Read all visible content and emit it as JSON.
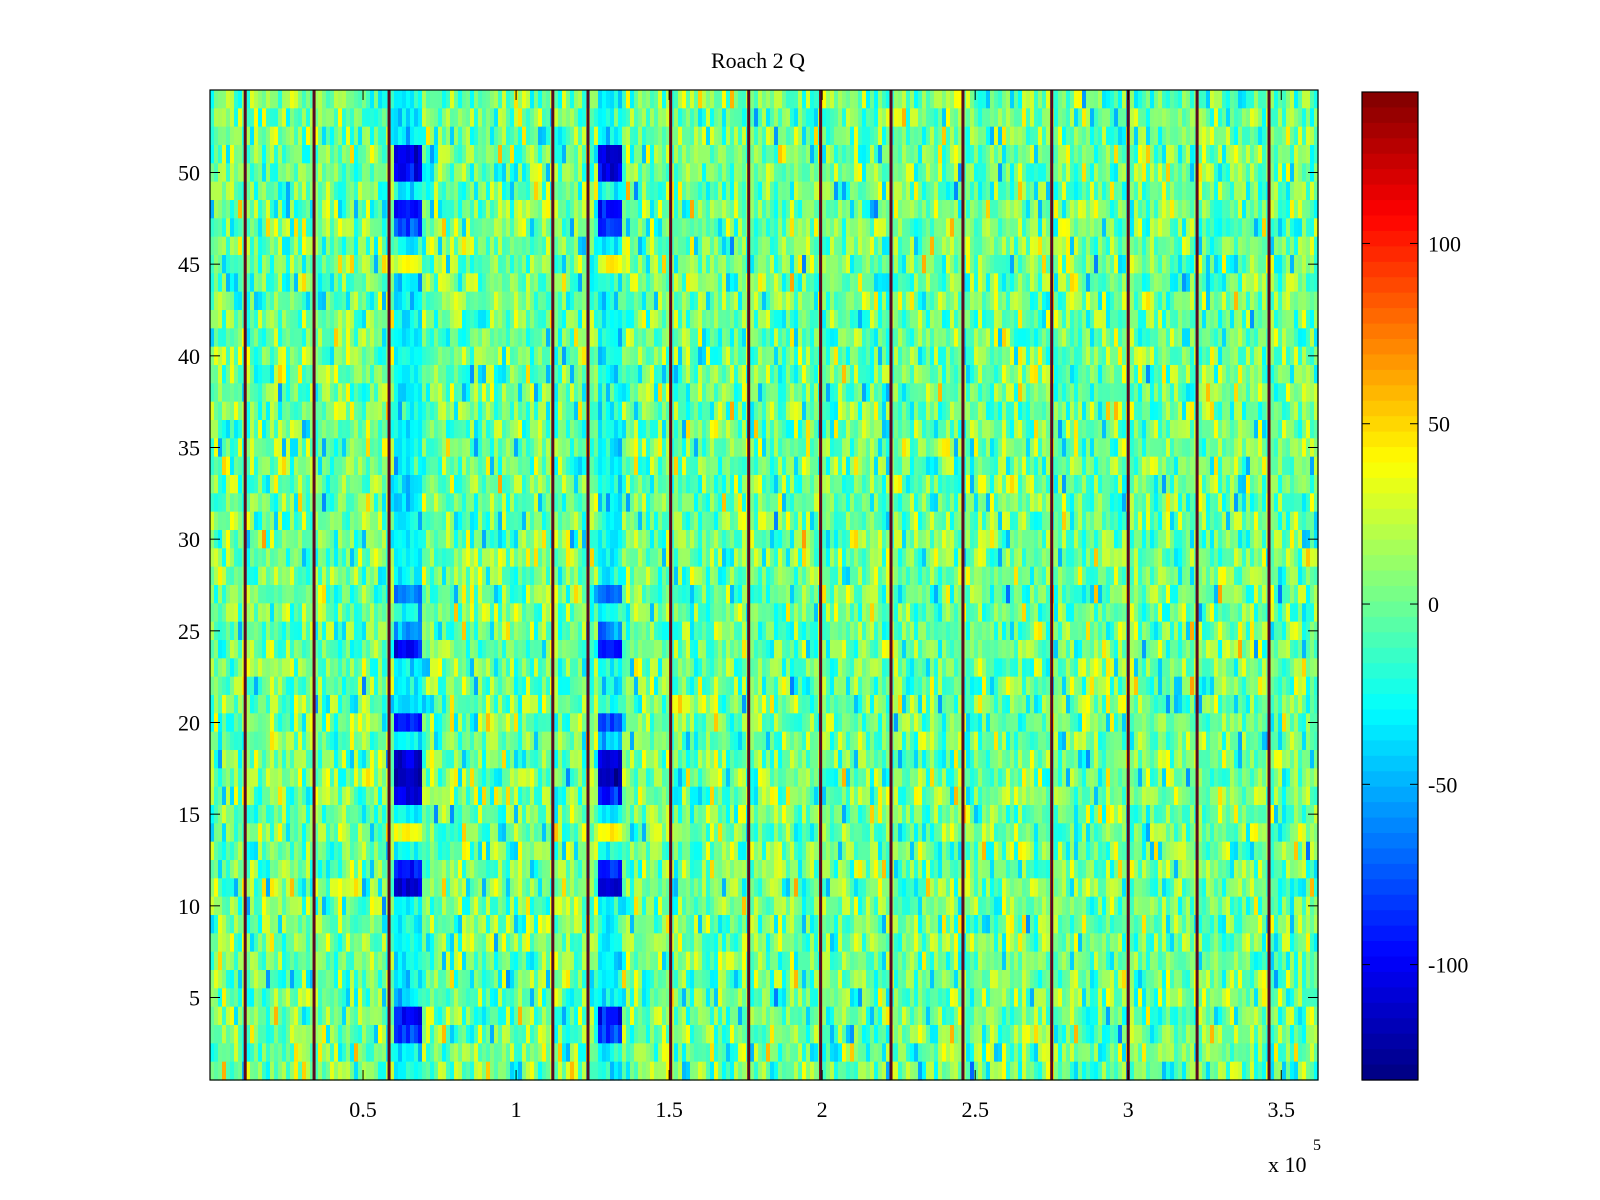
{
  "chart_data": {
    "type": "heatmap",
    "title": "Roach 2 Q",
    "xlabel": "",
    "ylabel": "",
    "x_multiplier": "x 10",
    "x_multiplier_exponent": "5",
    "xlim": [
      0,
      3.62
    ],
    "ylim": [
      0.5,
      54.5
    ],
    "x_ticks": [
      0.5,
      1,
      1.5,
      2,
      2.5,
      3,
      3.5
    ],
    "x_tick_labels": [
      "0.5",
      "1",
      "1.5",
      "2",
      "2.5",
      "3",
      "3.5"
    ],
    "y_ticks": [
      5,
      10,
      15,
      20,
      25,
      30,
      35,
      40,
      45,
      50
    ],
    "y_tick_labels": [
      "5",
      "10",
      "15",
      "20",
      "25",
      "30",
      "35",
      "40",
      "45",
      "50"
    ],
    "rows": 54,
    "colormap": "jet",
    "clim": [
      -132,
      142
    ],
    "colorbar_ticks": [
      -100,
      -50,
      0,
      50,
      100
    ],
    "colorbar_tick_labels": [
      "-100",
      "-50",
      "0",
      "50",
      "100"
    ],
    "background_mean": 0,
    "background_spread": 22,
    "spike_lines_x": [
      0.115,
      0.34,
      0.585,
      1.12,
      1.235,
      1.505,
      1.76,
      1.995,
      2.225,
      2.46,
      2.75,
      3.0,
      3.225,
      3.46
    ],
    "spike_value": 142,
    "anomaly_bands": [
      {
        "x_start": 0.6,
        "x_end": 0.69,
        "rows": [
          {
            "y": 51,
            "value": -105
          },
          {
            "y": 50,
            "value": -100
          },
          {
            "y": 48,
            "value": -95
          },
          {
            "y": 47,
            "value": -80
          },
          {
            "y": 45,
            "value": 30
          },
          {
            "y": 27,
            "value": -65
          },
          {
            "y": 25,
            "value": -60
          },
          {
            "y": 24,
            "value": -100
          },
          {
            "y": 20,
            "value": -85
          },
          {
            "y": 18,
            "value": -110
          },
          {
            "y": 17,
            "value": -115
          },
          {
            "y": 16,
            "value": -100
          },
          {
            "y": 14,
            "value": 35
          },
          {
            "y": 12,
            "value": -90
          },
          {
            "y": 11,
            "value": -115
          },
          {
            "y": 4,
            "value": -95
          },
          {
            "y": 3,
            "value": -80
          }
        ]
      },
      {
        "x_start": 1.265,
        "x_end": 1.35,
        "rows": [
          {
            "y": 51,
            "value": -110
          },
          {
            "y": 50,
            "value": -100
          },
          {
            "y": 48,
            "value": -95
          },
          {
            "y": 47,
            "value": -80
          },
          {
            "y": 45,
            "value": 35
          },
          {
            "y": 27,
            "value": -65
          },
          {
            "y": 25,
            "value": -60
          },
          {
            "y": 24,
            "value": -95
          },
          {
            "y": 20,
            "value": -85
          },
          {
            "y": 18,
            "value": -110
          },
          {
            "y": 17,
            "value": -120
          },
          {
            "y": 16,
            "value": -95
          },
          {
            "y": 14,
            "value": 40
          },
          {
            "y": 12,
            "value": -90
          },
          {
            "y": 11,
            "value": -110
          },
          {
            "y": 4,
            "value": -95
          },
          {
            "y": 3,
            "value": -80
          }
        ]
      }
    ]
  }
}
